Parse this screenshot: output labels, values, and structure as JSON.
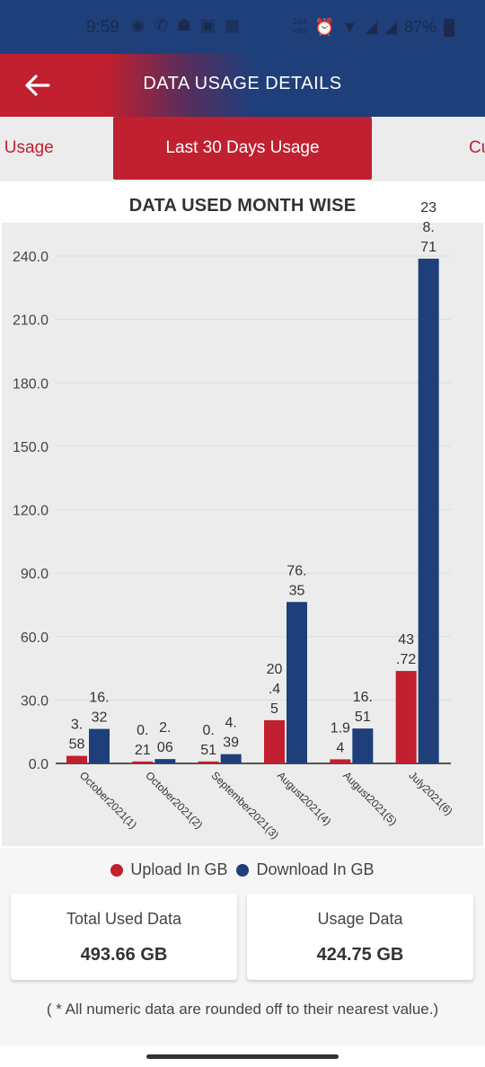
{
  "status_bar": {
    "time": "9:59",
    "app_icons": [
      "notification-icon",
      "whatsapp-icon",
      "game-icon",
      "rr-icon",
      "image-icon"
    ],
    "network_speed": "164",
    "network_speed_unit": "KB/S",
    "battery": "87%"
  },
  "header": {
    "title": "DATA USAGE DETAILS",
    "back_icon": "arrow-left-icon"
  },
  "tabs": [
    {
      "label": "s Usage",
      "active": false
    },
    {
      "label": "Last 30 Days Usage",
      "active": true
    },
    {
      "label": "Cu",
      "active": false
    }
  ],
  "chart_data": {
    "type": "bar",
    "title": "DATA USED MONTH WISE",
    "categories": [
      "October2021(1)",
      "October2021(2)",
      "September2021(3)",
      "August2021(4)",
      "August2021(5)",
      "July2021(6)"
    ],
    "series": [
      {
        "name": "Upload In GB",
        "color": "#c0202f",
        "values": [
          3.58,
          0.21,
          0.51,
          20.45,
          1.94,
          43.72
        ],
        "labels": [
          [
            "3.",
            "58"
          ],
          [
            "0.",
            "21"
          ],
          [
            "0.",
            "51"
          ],
          [
            "20",
            ".4",
            "5"
          ],
          [
            "1.9",
            "4"
          ],
          [
            "43",
            ".72"
          ]
        ]
      },
      {
        "name": "Download In GB",
        "color": "#1e3f7a",
        "values": [
          16.32,
          2.06,
          4.39,
          76.35,
          16.51,
          238.71
        ],
        "labels": [
          [
            "16.",
            "32"
          ],
          [
            "2.",
            "06"
          ],
          [
            "4.",
            "39"
          ],
          [
            "76.",
            "35"
          ],
          [
            "16.",
            "51"
          ],
          [
            "23",
            "8.",
            "71"
          ]
        ]
      }
    ],
    "y_ticks": [
      "0.0",
      "30.0",
      "60.0",
      "90.0",
      "120.0",
      "150.0",
      "180.0",
      "210.0",
      "240.0"
    ],
    "ylim": [
      0,
      240
    ],
    "grid": true,
    "legend_position": "bottom"
  },
  "legend": [
    {
      "label": "Upload In GB",
      "color": "#c0202f"
    },
    {
      "label": "Download In GB",
      "color": "#1e3f7a"
    }
  ],
  "summary": {
    "total_label": "Total Used Data",
    "total_value": "493.66 GB",
    "usage_label": "Usage Data",
    "usage_value": "424.75 GB"
  },
  "footnote": "( * All numeric data are rounded off to their nearest value.)"
}
